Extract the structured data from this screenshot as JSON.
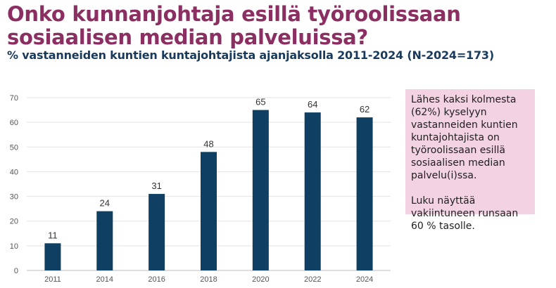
{
  "title_lines": [
    "Onko kunnanjohtaja esillä työroolissaan",
    "sosiaalisen median palveluissa?"
  ],
  "subtitle": "% vastanneiden kuntien kuntajohtajista ajanjaksolla 2011-2024 (N-2024=173)",
  "note": {
    "paragraph1": "Lähes kaksi kolmesta (62%) kyselyyn vastanneiden kuntien kuntajohtajista on työroolissaan esillä sosiaalisen median palvelu(i)ssa.",
    "paragraph2": "Luku näyttää vakiintuneen runsaan 60 % tasolle."
  },
  "colors": {
    "title": "#8b2f63",
    "subtitle": "#1a3a5c",
    "bar": "#0f3f63",
    "note_background": "#f2d2e3"
  },
  "chart_data": {
    "type": "bar",
    "categories": [
      "2011",
      "2014",
      "2016",
      "2018",
      "2020",
      "2022",
      "2024"
    ],
    "values": [
      11,
      24,
      31,
      48,
      65,
      64,
      62
    ],
    "ylim": [
      0,
      70
    ],
    "yticks": [
      0,
      10,
      20,
      30,
      40,
      50,
      60,
      70
    ],
    "grid": true,
    "data_labels": true
  }
}
